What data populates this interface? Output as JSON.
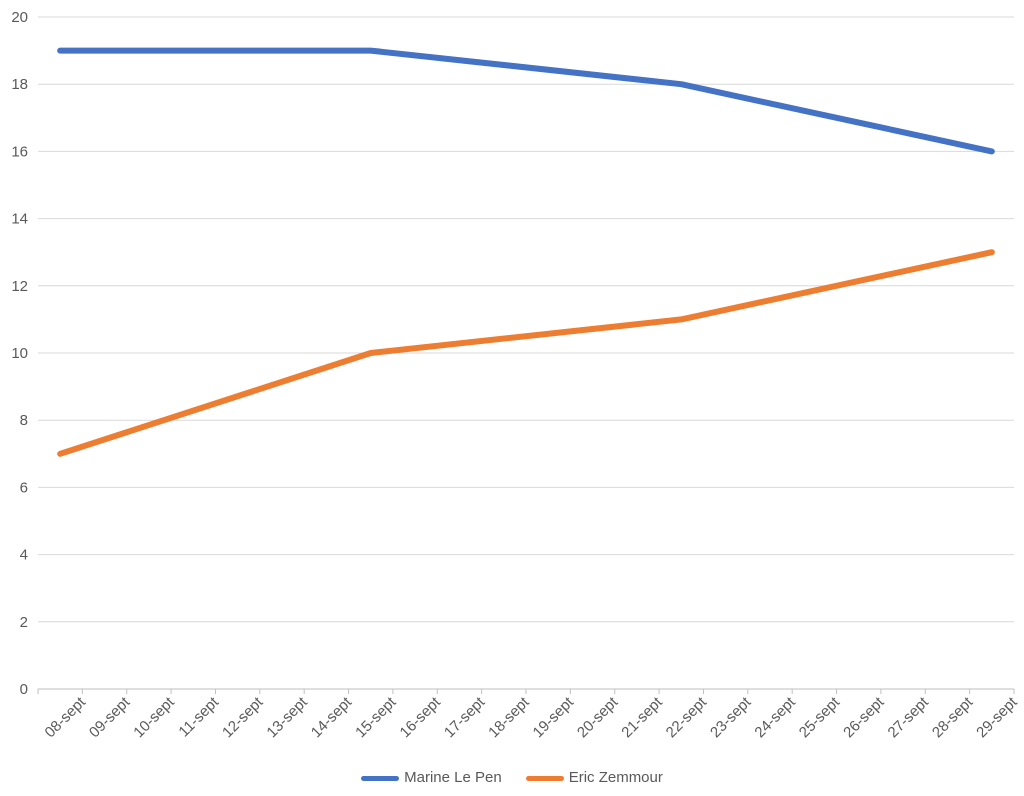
{
  "chart_data": {
    "type": "line",
    "title": "",
    "categories": [
      "08-sept",
      "09-sept",
      "10-sept",
      "11-sept",
      "12-sept",
      "13-sept",
      "14-sept",
      "15-sept",
      "16-sept",
      "17-sept",
      "18-sept",
      "19-sept",
      "20-sept",
      "21-sept",
      "22-sept",
      "23-sept",
      "24-sept",
      "25-sept",
      "26-sept",
      "27-sept",
      "28-sept",
      "29-sept"
    ],
    "series": [
      {
        "name": "Marine Le Pen",
        "color": "#4472C4",
        "points": [
          {
            "category": "08-sept",
            "value": 19
          },
          {
            "category": "15-sept",
            "value": 19
          },
          {
            "category": "22-sept",
            "value": 18
          },
          {
            "category": "29-sept",
            "value": 16
          }
        ]
      },
      {
        "name": "Eric Zemmour",
        "color": "#ED7D31",
        "points": [
          {
            "category": "08-sept",
            "value": 7
          },
          {
            "category": "15-sept",
            "value": 10
          },
          {
            "category": "22-sept",
            "value": 11
          },
          {
            "category": "29-sept",
            "value": 13
          }
        ]
      }
    ],
    "y_axis": {
      "min": 0,
      "max": 20,
      "step": 2,
      "ticks": [
        0,
        2,
        4,
        6,
        8,
        10,
        12,
        14,
        16,
        18,
        20
      ]
    },
    "x_axis": {
      "label_rotation_deg": -45
    },
    "grid": "horizontal",
    "legend_position": "bottom-center"
  },
  "styles": {
    "gridline_color": "#D9D9D9",
    "axis_line_color": "#BFBFBF",
    "tick_color": "#BFBFBF",
    "label_color": "#595959",
    "background_color": "#FFFFFF",
    "line_stroke_width": 6
  }
}
